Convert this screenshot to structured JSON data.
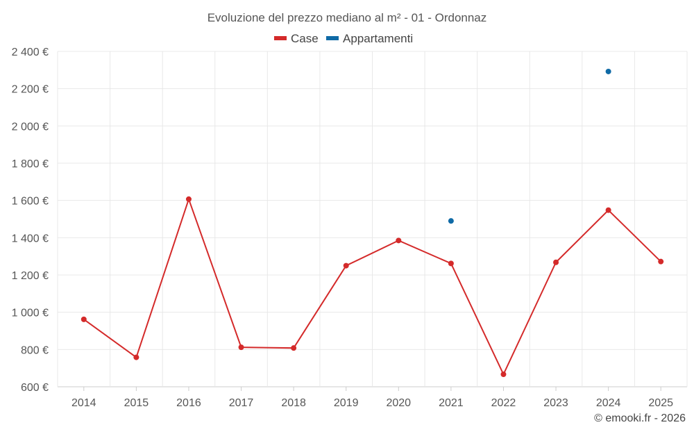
{
  "chart_data": {
    "type": "line",
    "title": "Evoluzione del prezzo mediano al m² - 01 - Ordonnaz",
    "categories": [
      "2014",
      "2015",
      "2016",
      "2017",
      "2018",
      "2019",
      "2020",
      "2021",
      "2022",
      "2023",
      "2024",
      "2025"
    ],
    "series": [
      {
        "name": "Case",
        "color": "#d42a2a",
        "values": [
          962,
          758,
          1607,
          812,
          808,
          1250,
          1385,
          1262,
          667,
          1268,
          1548,
          1272
        ]
      },
      {
        "name": "Appartamenti",
        "color": "#0f6aa6",
        "values": [
          null,
          null,
          null,
          null,
          null,
          null,
          null,
          1490,
          null,
          null,
          2292,
          null
        ]
      }
    ],
    "ylim": [
      600,
      2400
    ],
    "yticks": [
      600,
      800,
      1000,
      1200,
      1400,
      1600,
      1800,
      2000,
      2200,
      2400
    ],
    "ytick_labels": [
      "600 €",
      "800 €",
      "1 000 €",
      "1 200 €",
      "1 400 €",
      "1 600 €",
      "1 800 €",
      "2 000 €",
      "2 200 €",
      "2 400 €"
    ],
    "legend_position": "top-center",
    "grid": true
  },
  "credit": "© emooki.fr - 2026"
}
